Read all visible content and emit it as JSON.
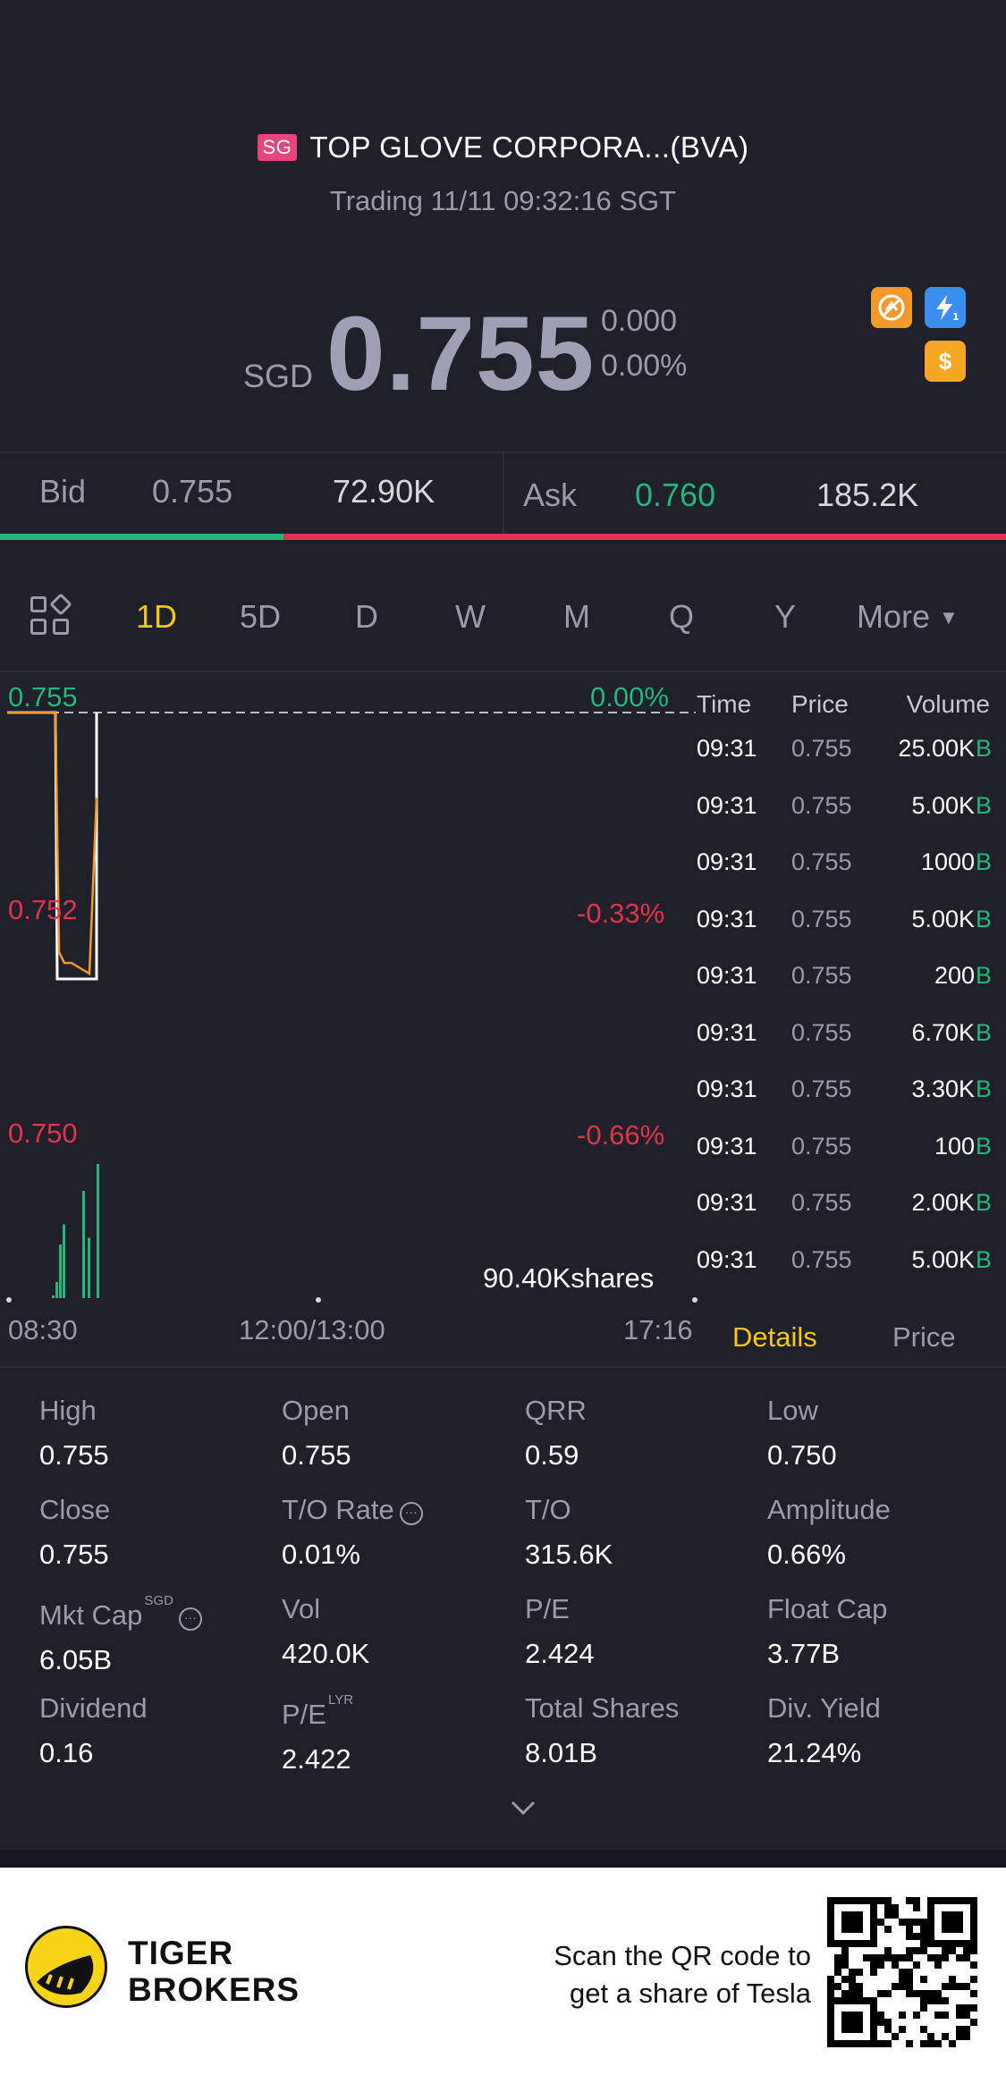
{
  "header": {
    "market_badge": "SG",
    "stock_name": "TOP GLOVE CORPORA...(BVA)",
    "status": "Trading 11/11 09:32:16 SGT",
    "currency": "SGD",
    "last_price": "0.755",
    "change": "0.000",
    "change_pct": "0.00%",
    "icons": [
      "no-short-icon",
      "flash-icon",
      "dollar-icon"
    ]
  },
  "quote": {
    "bid_label": "Bid",
    "bid_price": "0.755",
    "bid_size": "72.90K",
    "ask_label": "Ask",
    "ask_price": "0.760",
    "ask_size": "185.2K",
    "bid_ratio": 0.282
  },
  "period_tabs": {
    "items": [
      "1D",
      "5D",
      "D",
      "W",
      "M",
      "Q",
      "Y",
      "More"
    ],
    "active": "1D"
  },
  "chart": {
    "y_top": "0.755",
    "y_mid": "0.752",
    "y_bottom": "0.750",
    "pct_top": "0.00%",
    "pct_mid": "-0.33%",
    "pct_bottom": "-0.66%",
    "volume_label": "90.40Kshares",
    "x_start": "08:30",
    "x_mid": "12:00/13:00",
    "x_end": "17:16"
  },
  "chart_data": {
    "type": "line",
    "x": [
      "08:30",
      "09:00",
      "09:05",
      "09:10",
      "09:15",
      "09:20",
      "09:25",
      "09:31"
    ],
    "series": [
      {
        "values": [
          0.755,
          0.755,
          0.7505,
          0.7503,
          0.7503,
          0.7502,
          0.7501,
          0.7534
        ]
      }
    ],
    "ylim": [
      0.75,
      0.755
    ],
    "baseline": 0.755,
    "volumes_relative": [
      0.0,
      0.02,
      0.12,
      0.4,
      0.55,
      0.8,
      0.45,
      1.0
    ]
  },
  "ticks": {
    "headers": [
      "Time",
      "Price",
      "Volume"
    ],
    "rows": [
      {
        "time": "09:31",
        "price": "0.755",
        "volume": "25.00K",
        "side": "B"
      },
      {
        "time": "09:31",
        "price": "0.755",
        "volume": "5.00K",
        "side": "B"
      },
      {
        "time": "09:31",
        "price": "0.755",
        "volume": "1000",
        "side": "B"
      },
      {
        "time": "09:31",
        "price": "0.755",
        "volume": "5.00K",
        "side": "B"
      },
      {
        "time": "09:31",
        "price": "0.755",
        "volume": "200",
        "side": "B"
      },
      {
        "time": "09:31",
        "price": "0.755",
        "volume": "6.70K",
        "side": "B"
      },
      {
        "time": "09:31",
        "price": "0.755",
        "volume": "3.30K",
        "side": "B"
      },
      {
        "time": "09:31",
        "price": "0.755",
        "volume": "100",
        "side": "B"
      },
      {
        "time": "09:31",
        "price": "0.755",
        "volume": "2.00K",
        "side": "B"
      },
      {
        "time": "09:31",
        "price": "0.755",
        "volume": "5.00K",
        "side": "B"
      }
    ]
  },
  "sub_tabs": {
    "details": "Details",
    "price": "Price"
  },
  "details": [
    {
      "label": "High",
      "value": "0.755"
    },
    {
      "label": "Open",
      "value": "0.755"
    },
    {
      "label": "QRR",
      "value": "0.59"
    },
    {
      "label": "Low",
      "value": "0.750"
    },
    {
      "label": "Close",
      "value": "0.755"
    },
    {
      "label": "T/O Rate",
      "value": "0.01%"
    },
    {
      "label": "T/O",
      "value": "315.6K"
    },
    {
      "label": "Amplitude",
      "value": "0.66%"
    },
    {
      "label": "Mkt Cap",
      "sup": "SGD",
      "value": "6.05B"
    },
    {
      "label": "Vol",
      "value": "420.0K"
    },
    {
      "label": "P/E",
      "value": "2.424"
    },
    {
      "label": "Float Cap",
      "value": "3.77B"
    },
    {
      "label": "Dividend",
      "value": "0.16"
    },
    {
      "label": "P/E",
      "sup": "LYR",
      "value": "2.422"
    },
    {
      "label": "Total Shares",
      "value": "8.01B"
    },
    {
      "label": "Div. Yield",
      "value": "21.24%"
    }
  ],
  "footer": {
    "brand_line1": "TIGER",
    "brand_line2": "BROKERS",
    "promo_line1": "Scan the QR code to",
    "promo_line2": "get a share of Tesla"
  },
  "colors": {
    "background": "#1f2029",
    "accent": "#f5c518",
    "up": "#24b67a",
    "down": "#e0334e",
    "price_line": "#f39a2b"
  }
}
